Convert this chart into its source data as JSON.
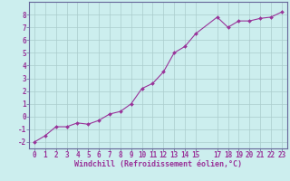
{
  "x": [
    0,
    1,
    2,
    3,
    4,
    5,
    6,
    7,
    8,
    9,
    10,
    11,
    12,
    13,
    14,
    15,
    17,
    18,
    19,
    20,
    21,
    22,
    23
  ],
  "y": [
    -2.0,
    -1.5,
    -0.8,
    -0.8,
    -0.5,
    -0.6,
    -0.3,
    0.2,
    0.4,
    1.0,
    2.2,
    2.6,
    3.5,
    5.0,
    5.5,
    6.5,
    7.8,
    7.0,
    7.5,
    7.5,
    7.7,
    7.8,
    8.2
  ],
  "line_color": "#993399",
  "marker": "D",
  "marker_size": 2,
  "bg_color": "#cceeee",
  "grid_color": "#aacccc",
  "axis_color": "#993399",
  "spine_color": "#666699",
  "xlabel": "Windchill (Refroidissement éolien,°C)",
  "xlabel_fontsize": 6,
  "tick_fontsize": 5.5,
  "xlim": [
    -0.5,
    23.5
  ],
  "ylim": [
    -2.5,
    9.0
  ],
  "yticks": [
    -2,
    -1,
    0,
    1,
    2,
    3,
    4,
    5,
    6,
    7,
    8
  ],
  "xticks": [
    0,
    1,
    2,
    3,
    4,
    5,
    6,
    7,
    8,
    9,
    10,
    11,
    12,
    13,
    14,
    15,
    17,
    18,
    19,
    20,
    21,
    22,
    23
  ]
}
